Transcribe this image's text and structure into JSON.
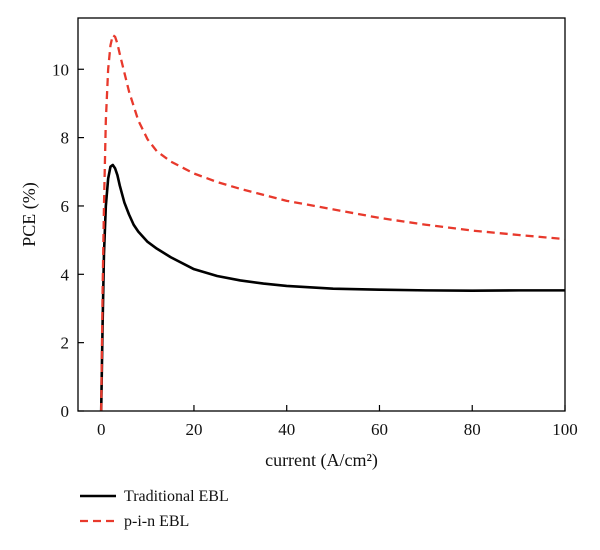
{
  "chart_data": {
    "type": "line",
    "xlabel": "current (A/cm²)",
    "ylabel": "PCE (%)",
    "xlim": [
      -5,
      100
    ],
    "ylim": [
      0,
      11.5
    ],
    "x_ticks": [
      0,
      20,
      40,
      60,
      80,
      100
    ],
    "y_ticks": [
      0,
      2,
      4,
      6,
      8,
      10
    ],
    "x_tick_labels": [
      "0",
      "20",
      "40",
      "60",
      "80",
      "100"
    ],
    "y_tick_labels": [
      "0",
      "2",
      "4",
      "6",
      "8",
      "10"
    ],
    "grid": false,
    "legend_position": "bottom-left, below plot",
    "series": [
      {
        "name": "Traditional EBL",
        "color": "#000000",
        "style": "solid",
        "x": [
          0,
          0.3,
          0.6,
          1.0,
          1.5,
          2.0,
          2.5,
          3.0,
          3.5,
          4.0,
          5.0,
          6.0,
          7.0,
          8.0,
          10,
          12,
          15,
          20,
          25,
          30,
          35,
          40,
          50,
          60,
          70,
          80,
          90,
          100
        ],
        "y": [
          0,
          2.5,
          4.6,
          6.0,
          6.8,
          7.15,
          7.2,
          7.1,
          6.9,
          6.6,
          6.1,
          5.75,
          5.45,
          5.25,
          4.95,
          4.75,
          4.5,
          4.15,
          3.95,
          3.82,
          3.73,
          3.66,
          3.58,
          3.55,
          3.53,
          3.52,
          3.53,
          3.53
        ]
      },
      {
        "name": "p-i-n EBL",
        "color": "#e8392c",
        "style": "dashed",
        "x": [
          0,
          0.3,
          0.6,
          1.0,
          1.5,
          2.0,
          2.5,
          3.0,
          3.5,
          4.0,
          5.0,
          6.0,
          8.0,
          10,
          12,
          15,
          20,
          25,
          30,
          40,
          50,
          60,
          70,
          80,
          90,
          100
        ],
        "y": [
          0,
          3.5,
          6.0,
          8.5,
          10.0,
          10.7,
          11.0,
          10.95,
          10.75,
          10.45,
          9.9,
          9.35,
          8.5,
          7.95,
          7.6,
          7.3,
          6.95,
          6.7,
          6.5,
          6.15,
          5.9,
          5.65,
          5.45,
          5.28,
          5.15,
          5.03
        ]
      }
    ]
  }
}
